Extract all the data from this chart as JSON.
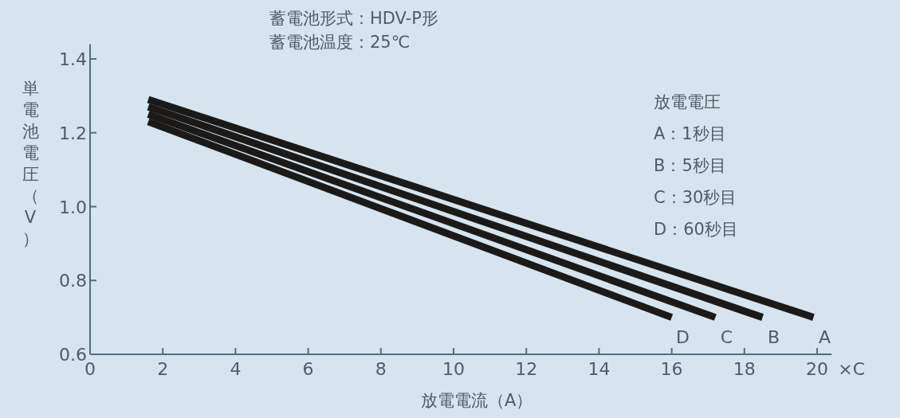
{
  "chart_data": {
    "type": "line",
    "title": "蓄電池形式：HDV-P形",
    "subtitle": "蓄電池温度：25℃",
    "xlabel": "放電電流（A）",
    "ylabel": "単電池電圧（V）",
    "annotations": [
      "放電電圧",
      "A：1秒目",
      "B：5秒目",
      "C：30秒目",
      "D：60秒目",
      "×C"
    ],
    "xlim": [
      0,
      20.4
    ],
    "ylim": [
      0.6,
      1.44
    ],
    "xticks": [
      0,
      2,
      4,
      6,
      8,
      10,
      12,
      14,
      16,
      18,
      20
    ],
    "yticks": [
      0.6,
      0.8,
      {
        "value": 1,
        "label": "1.0"
      },
      1.2,
      1.4
    ],
    "grid": false,
    "marker": "none",
    "line_style": "solid",
    "series": [
      {
        "name": "A",
        "color": "#1c1a18",
        "x": [
          1.6,
          19.9
        ],
        "values": [
          1.29,
          0.7
        ]
      },
      {
        "name": "B",
        "color": "#1c1a18",
        "x": [
          1.6,
          18.5
        ],
        "values": [
          1.27,
          0.7
        ]
      },
      {
        "name": "C",
        "color": "#1c1a18",
        "x": [
          1.6,
          17.2
        ],
        "values": [
          1.25,
          0.7
        ]
      },
      {
        "name": "D",
        "color": "#1c1a18",
        "x": [
          1.6,
          16.0
        ],
        "values": [
          1.23,
          0.7
        ]
      }
    ]
  }
}
